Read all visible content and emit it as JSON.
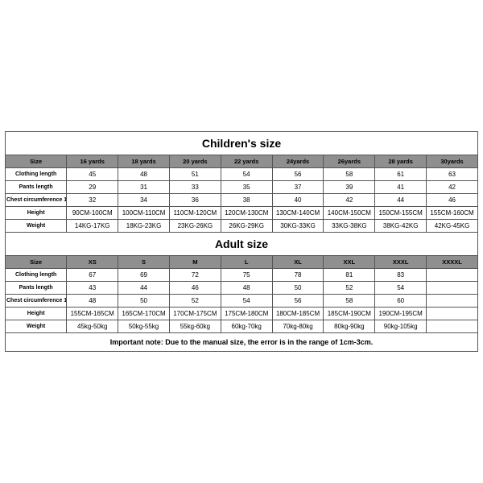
{
  "children": {
    "title": "Children's size",
    "size_label": "Size",
    "sizes": [
      "16 yards",
      "18 yards",
      "20 yards",
      "22 yards",
      "24yards",
      "26yards",
      "28 yards",
      "30yards"
    ],
    "rows": [
      {
        "label": "Clothing length",
        "values": [
          "45",
          "48",
          "51",
          "54",
          "56",
          "58",
          "61",
          "63"
        ]
      },
      {
        "label": "Pants length",
        "values": [
          "29",
          "31",
          "33",
          "35",
          "37",
          "39",
          "41",
          "42"
        ]
      },
      {
        "label": "Chest circumference 1/2",
        "values": [
          "32",
          "34",
          "36",
          "38",
          "40",
          "42",
          "44",
          "46"
        ]
      },
      {
        "label": "Height",
        "values": [
          "90CM-100CM",
          "100CM-110CM",
          "110CM-120CM",
          "120CM-130CM",
          "130CM-140CM",
          "140CM-150CM",
          "150CM-155CM",
          "155CM-160CM"
        ]
      },
      {
        "label": "Weight",
        "values": [
          "14KG-17KG",
          "18KG-23KG",
          "23KG-26KG",
          "26KG-29KG",
          "30KG-33KG",
          "33KG-38KG",
          "38KG-42KG",
          "42KG-45KG"
        ]
      }
    ]
  },
  "adult": {
    "title": "Adult size",
    "size_label": "Size",
    "sizes": [
      "XS",
      "S",
      "M",
      "L",
      "XL",
      "XXL",
      "XXXL",
      "XXXXL"
    ],
    "rows": [
      {
        "label": "Clothing length",
        "values": [
          "67",
          "69",
          "72",
          "75",
          "78",
          "81",
          "83",
          ""
        ]
      },
      {
        "label": "Pants length",
        "values": [
          "43",
          "44",
          "46",
          "48",
          "50",
          "52",
          "54",
          ""
        ]
      },
      {
        "label": "Chest circumference 1/2",
        "values": [
          "48",
          "50",
          "52",
          "54",
          "56",
          "58",
          "60",
          ""
        ]
      },
      {
        "label": "Height",
        "values": [
          "155CM-165CM",
          "165CM-170CM",
          "170CM-175CM",
          "175CM-180CM",
          "180CM-185CM",
          "185CM-190CM",
          "190CM-195CM",
          ""
        ]
      },
      {
        "label": "Weight",
        "values": [
          "45kg-50kg",
          "50kg-55kg",
          "55kg-60kg",
          "60kg-70kg",
          "70kg-80kg",
          "80kg-90kg",
          "90kg-105kg",
          ""
        ]
      }
    ]
  },
  "note": "Important note: Due to the manual size, the error is in the range of 1cm-3cm.",
  "colors": {
    "border": "#555555",
    "header_bg": "#8f8f8f",
    "background": "#ffffff"
  }
}
